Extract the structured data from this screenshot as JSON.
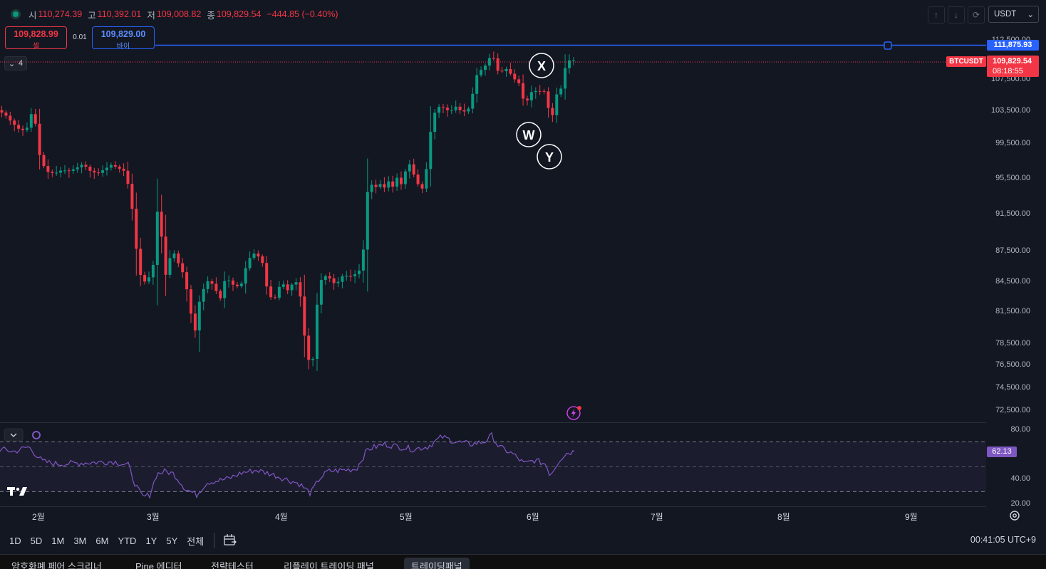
{
  "ohlc": {
    "open_label": "시",
    "open": "110,274.39",
    "high_label": "고",
    "high": "110,392.01",
    "low_label": "저",
    "low": "109,008.82",
    "close_label": "종",
    "close": "109,829.54",
    "change": "−444.85 (−0.40%)"
  },
  "trade": {
    "sell_price": "109,828.99",
    "sell_label": "셀",
    "buy_price": "109,829.00",
    "buy_label": "바이",
    "spread": "0.01"
  },
  "indicator_count": "4",
  "toolbar": {
    "currency": "USDT",
    "up_icon": "arrow-up-icon",
    "down_icon": "arrow-down-icon",
    "reset_icon": "reset-icon"
  },
  "colors": {
    "up": "#089981",
    "down": "#f23645",
    "hline": "#2962ff",
    "rsi": "#7e57c2",
    "bg": "#131722"
  },
  "price_axis": [
    "112,500.00",
    "107,500.00",
    "103,500.00",
    "99,500.00",
    "95,500.00",
    "91,500.00",
    "87,500.00",
    "84,500.00",
    "81,500.00",
    "78,500.00",
    "76,500.00",
    "74,500.00",
    "72,500.00"
  ],
  "horizontal_line": {
    "price": "111,875.93"
  },
  "last_price": {
    "symbol": "BTCUSDT",
    "price": "109,829.54",
    "countdown": "08:18:55"
  },
  "wave_labels": [
    "X",
    "W",
    "Y"
  ],
  "rsi": {
    "axis": [
      "80.00",
      "40.00",
      "20.00"
    ],
    "value": "62.13"
  },
  "time_axis": [
    "2월",
    "3월",
    "4월",
    "5월",
    "6월",
    "7월",
    "8월",
    "9월"
  ],
  "ranges": [
    "1D",
    "5D",
    "1M",
    "3M",
    "6M",
    "YTD",
    "1Y",
    "5Y",
    "전체"
  ],
  "clock": "00:41:05 UTC+9",
  "bottom_tabs": [
    "암호화폐 페어 스크리너",
    "Pine 에디터",
    "전략테스터",
    "리플레이 트레이딩 패널",
    "트레이딩패널"
  ],
  "chart_data": {
    "type": "candlestick",
    "symbol": "BTCUSDT",
    "x_range": [
      "2월",
      "9월"
    ],
    "ylim": [
      72500,
      112500
    ],
    "close_path": [
      [
        0,
        103500
      ],
      [
        10,
        103000
      ],
      [
        20,
        102000
      ],
      [
        30,
        101200
      ],
      [
        40,
        101000
      ],
      [
        50,
        103800
      ],
      [
        60,
        97500
      ],
      [
        70,
        96200
      ],
      [
        80,
        96000
      ],
      [
        90,
        96400
      ],
      [
        100,
        96300
      ],
      [
        110,
        96600
      ],
      [
        120,
        97100
      ],
      [
        130,
        96300
      ],
      [
        140,
        96000
      ],
      [
        150,
        96500
      ],
      [
        160,
        97000
      ],
      [
        170,
        96600
      ],
      [
        180,
        96200
      ],
      [
        190,
        91500
      ],
      [
        197,
        86000
      ],
      [
        204,
        84300
      ],
      [
        212,
        84800
      ],
      [
        220,
        86500
      ],
      [
        226,
        94000
      ],
      [
        232,
        86800
      ],
      [
        238,
        84300
      ],
      [
        244,
        88200
      ],
      [
        250,
        86800
      ],
      [
        256,
        86000
      ],
      [
        262,
        85000
      ],
      [
        270,
        82000
      ],
      [
        276,
        79000
      ],
      [
        282,
        82200
      ],
      [
        290,
        83900
      ],
      [
        296,
        84600
      ],
      [
        304,
        84000
      ],
      [
        312,
        82600
      ],
      [
        320,
        84900
      ],
      [
        328,
        84300
      ],
      [
        334,
        83900
      ],
      [
        342,
        84200
      ],
      [
        350,
        86300
      ],
      [
        358,
        87400
      ],
      [
        366,
        87000
      ],
      [
        372,
        86300
      ],
      [
        378,
        83800
      ],
      [
        386,
        82500
      ],
      [
        392,
        83100
      ],
      [
        398,
        84600
      ],
      [
        404,
        83800
      ],
      [
        410,
        83400
      ],
      [
        416,
        84900
      ],
      [
        424,
        83500
      ],
      [
        430,
        79500
      ],
      [
        436,
        77000
      ],
      [
        442,
        76600
      ],
      [
        448,
        82000
      ],
      [
        454,
        84600
      ],
      [
        460,
        85000
      ],
      [
        468,
        84700
      ],
      [
        474,
        84100
      ],
      [
        480,
        84600
      ],
      [
        486,
        85200
      ],
      [
        492,
        84900
      ],
      [
        500,
        85100
      ],
      [
        508,
        85600
      ],
      [
        514,
        88000
      ],
      [
        518,
        93700
      ],
      [
        524,
        94800
      ],
      [
        530,
        94400
      ],
      [
        536,
        94900
      ],
      [
        542,
        94300
      ],
      [
        548,
        95200
      ],
      [
        554,
        94400
      ],
      [
        560,
        95600
      ],
      [
        566,
        94700
      ],
      [
        572,
        96200
      ],
      [
        578,
        97100
      ],
      [
        584,
        95900
      ],
      [
        590,
        94800
      ],
      [
        596,
        94300
      ],
      [
        602,
        96600
      ],
      [
        610,
        102600
      ],
      [
        618,
        103900
      ],
      [
        624,
        103900
      ],
      [
        630,
        103500
      ],
      [
        638,
        103500
      ],
      [
        644,
        104000
      ],
      [
        652,
        103200
      ],
      [
        658,
        103500
      ],
      [
        664,
        103900
      ],
      [
        670,
        107500
      ],
      [
        676,
        108400
      ],
      [
        682,
        108800
      ],
      [
        688,
        109600
      ],
      [
        694,
        110900
      ],
      [
        700,
        108600
      ],
      [
        706,
        108200
      ],
      [
        712,
        108800
      ],
      [
        718,
        108400
      ],
      [
        724,
        107300
      ],
      [
        730,
        107500
      ],
      [
        736,
        105100
      ],
      [
        742,
        104400
      ],
      [
        748,
        105700
      ],
      [
        754,
        105900
      ],
      [
        760,
        105800
      ],
      [
        766,
        106200
      ],
      [
        772,
        104000
      ],
      [
        778,
        102500
      ],
      [
        784,
        105400
      ],
      [
        790,
        105900
      ],
      [
        796,
        108700
      ],
      [
        802,
        109800
      ],
      [
        806,
        109829.54
      ]
    ],
    "rsi_path": [
      [
        0,
        64
      ],
      [
        20,
        62
      ],
      [
        40,
        66
      ],
      [
        60,
        54
      ],
      [
        80,
        52
      ],
      [
        120,
        53
      ],
      [
        160,
        54
      ],
      [
        180,
        51
      ],
      [
        190,
        35
      ],
      [
        200,
        25
      ],
      [
        210,
        27
      ],
      [
        220,
        44
      ],
      [
        232,
        46
      ],
      [
        244,
        44
      ],
      [
        260,
        32
      ],
      [
        276,
        27
      ],
      [
        290,
        37
      ],
      [
        320,
        40
      ],
      [
        340,
        45
      ],
      [
        360,
        47
      ],
      [
        380,
        44
      ],
      [
        400,
        40
      ],
      [
        420,
        36
      ],
      [
        436,
        28
      ],
      [
        448,
        40
      ],
      [
        460,
        46
      ],
      [
        500,
        48
      ],
      [
        516,
        64
      ],
      [
        540,
        68
      ],
      [
        560,
        66
      ],
      [
        580,
        64
      ],
      [
        600,
        66
      ],
      [
        620,
        74
      ],
      [
        640,
        70
      ],
      [
        660,
        68
      ],
      [
        680,
        70
      ],
      [
        690,
        75
      ],
      [
        700,
        66
      ],
      [
        720,
        60
      ],
      [
        736,
        52
      ],
      [
        750,
        55
      ],
      [
        766,
        52
      ],
      [
        772,
        43
      ],
      [
        786,
        56
      ],
      [
        796,
        61
      ],
      [
        806,
        62.13
      ]
    ],
    "rsi_levels": [
      70,
      50,
      30
    ]
  }
}
